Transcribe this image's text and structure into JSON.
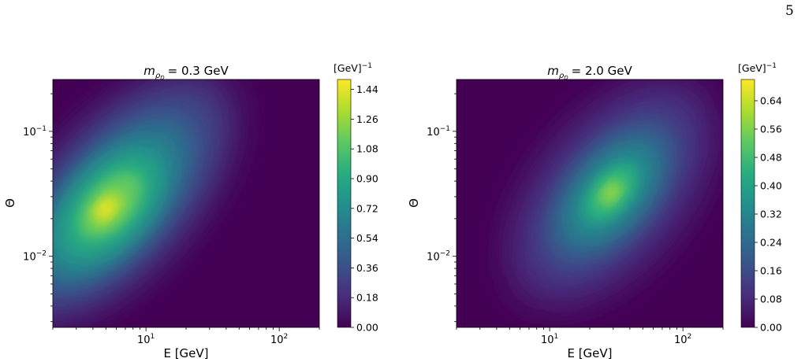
{
  "page_number": "5",
  "chart_data": [
    {
      "type": "heatmap",
      "title_symbol": "m",
      "title_subscript": "ρ",
      "title_subsubscript": "D",
      "title_value": "= 0.3 GeV",
      "xlabel": "E [GeV]",
      "ylabel": "Θ",
      "x_scale": "log",
      "y_scale": "log",
      "xlim": [
        2.0,
        200
      ],
      "ylim": [
        0.0027,
        0.26
      ],
      "x_ticks": [
        {
          "base": "10",
          "exp": "1",
          "value": 10
        },
        {
          "base": "10",
          "exp": "2",
          "value": 100
        }
      ],
      "y_ticks": [
        {
          "base": "10",
          "exp": "−1",
          "value": 0.1
        },
        {
          "base": "10",
          "exp": "−2",
          "value": 0.01
        }
      ],
      "peak": {
        "E": 6,
        "theta": 0.03,
        "value": 1.5
      },
      "secondary_peak": {
        "E": 9,
        "theta": 0.02
      },
      "colormap": "viridis",
      "colorbar_label": "[GeV]",
      "colorbar_label_exp": "−1",
      "colorbar_range": [
        0,
        1.5
      ],
      "colorbar_ticks": [
        "0.00",
        "0.18",
        "0.36",
        "0.54",
        "0.72",
        "0.90",
        "1.08",
        "1.26",
        "1.44"
      ],
      "colorbar_tick_values": [
        0.0,
        0.18,
        0.36,
        0.54,
        0.72,
        0.9,
        1.08,
        1.26,
        1.44
      ]
    },
    {
      "type": "heatmap",
      "title_symbol": "m",
      "title_subscript": "ρ",
      "title_subsubscript": "D",
      "title_value": "= 2.0 GeV",
      "xlabel": "E [GeV]",
      "ylabel": "Θ",
      "x_scale": "log",
      "y_scale": "log",
      "xlim": [
        2.0,
        200
      ],
      "ylim": [
        0.0027,
        0.26
      ],
      "x_ticks": [
        {
          "base": "10",
          "exp": "1",
          "value": 10
        },
        {
          "base": "10",
          "exp": "2",
          "value": 100
        }
      ],
      "y_ticks": [
        {
          "base": "10",
          "exp": "−1",
          "value": 0.1
        },
        {
          "base": "10",
          "exp": "−2",
          "value": 0.01
        }
      ],
      "peak": {
        "E": 32,
        "theta": 0.03,
        "value": 0.7
      },
      "colormap": "viridis",
      "colorbar_label": "[GeV]",
      "colorbar_label_exp": "−1",
      "colorbar_range": [
        0,
        0.7
      ],
      "colorbar_ticks": [
        "0.00",
        "0.08",
        "0.16",
        "0.24",
        "0.32",
        "0.40",
        "0.48",
        "0.56",
        "0.64"
      ],
      "colorbar_tick_values": [
        0.0,
        0.08,
        0.16,
        0.24,
        0.32,
        0.4,
        0.48,
        0.56,
        0.64
      ]
    }
  ]
}
